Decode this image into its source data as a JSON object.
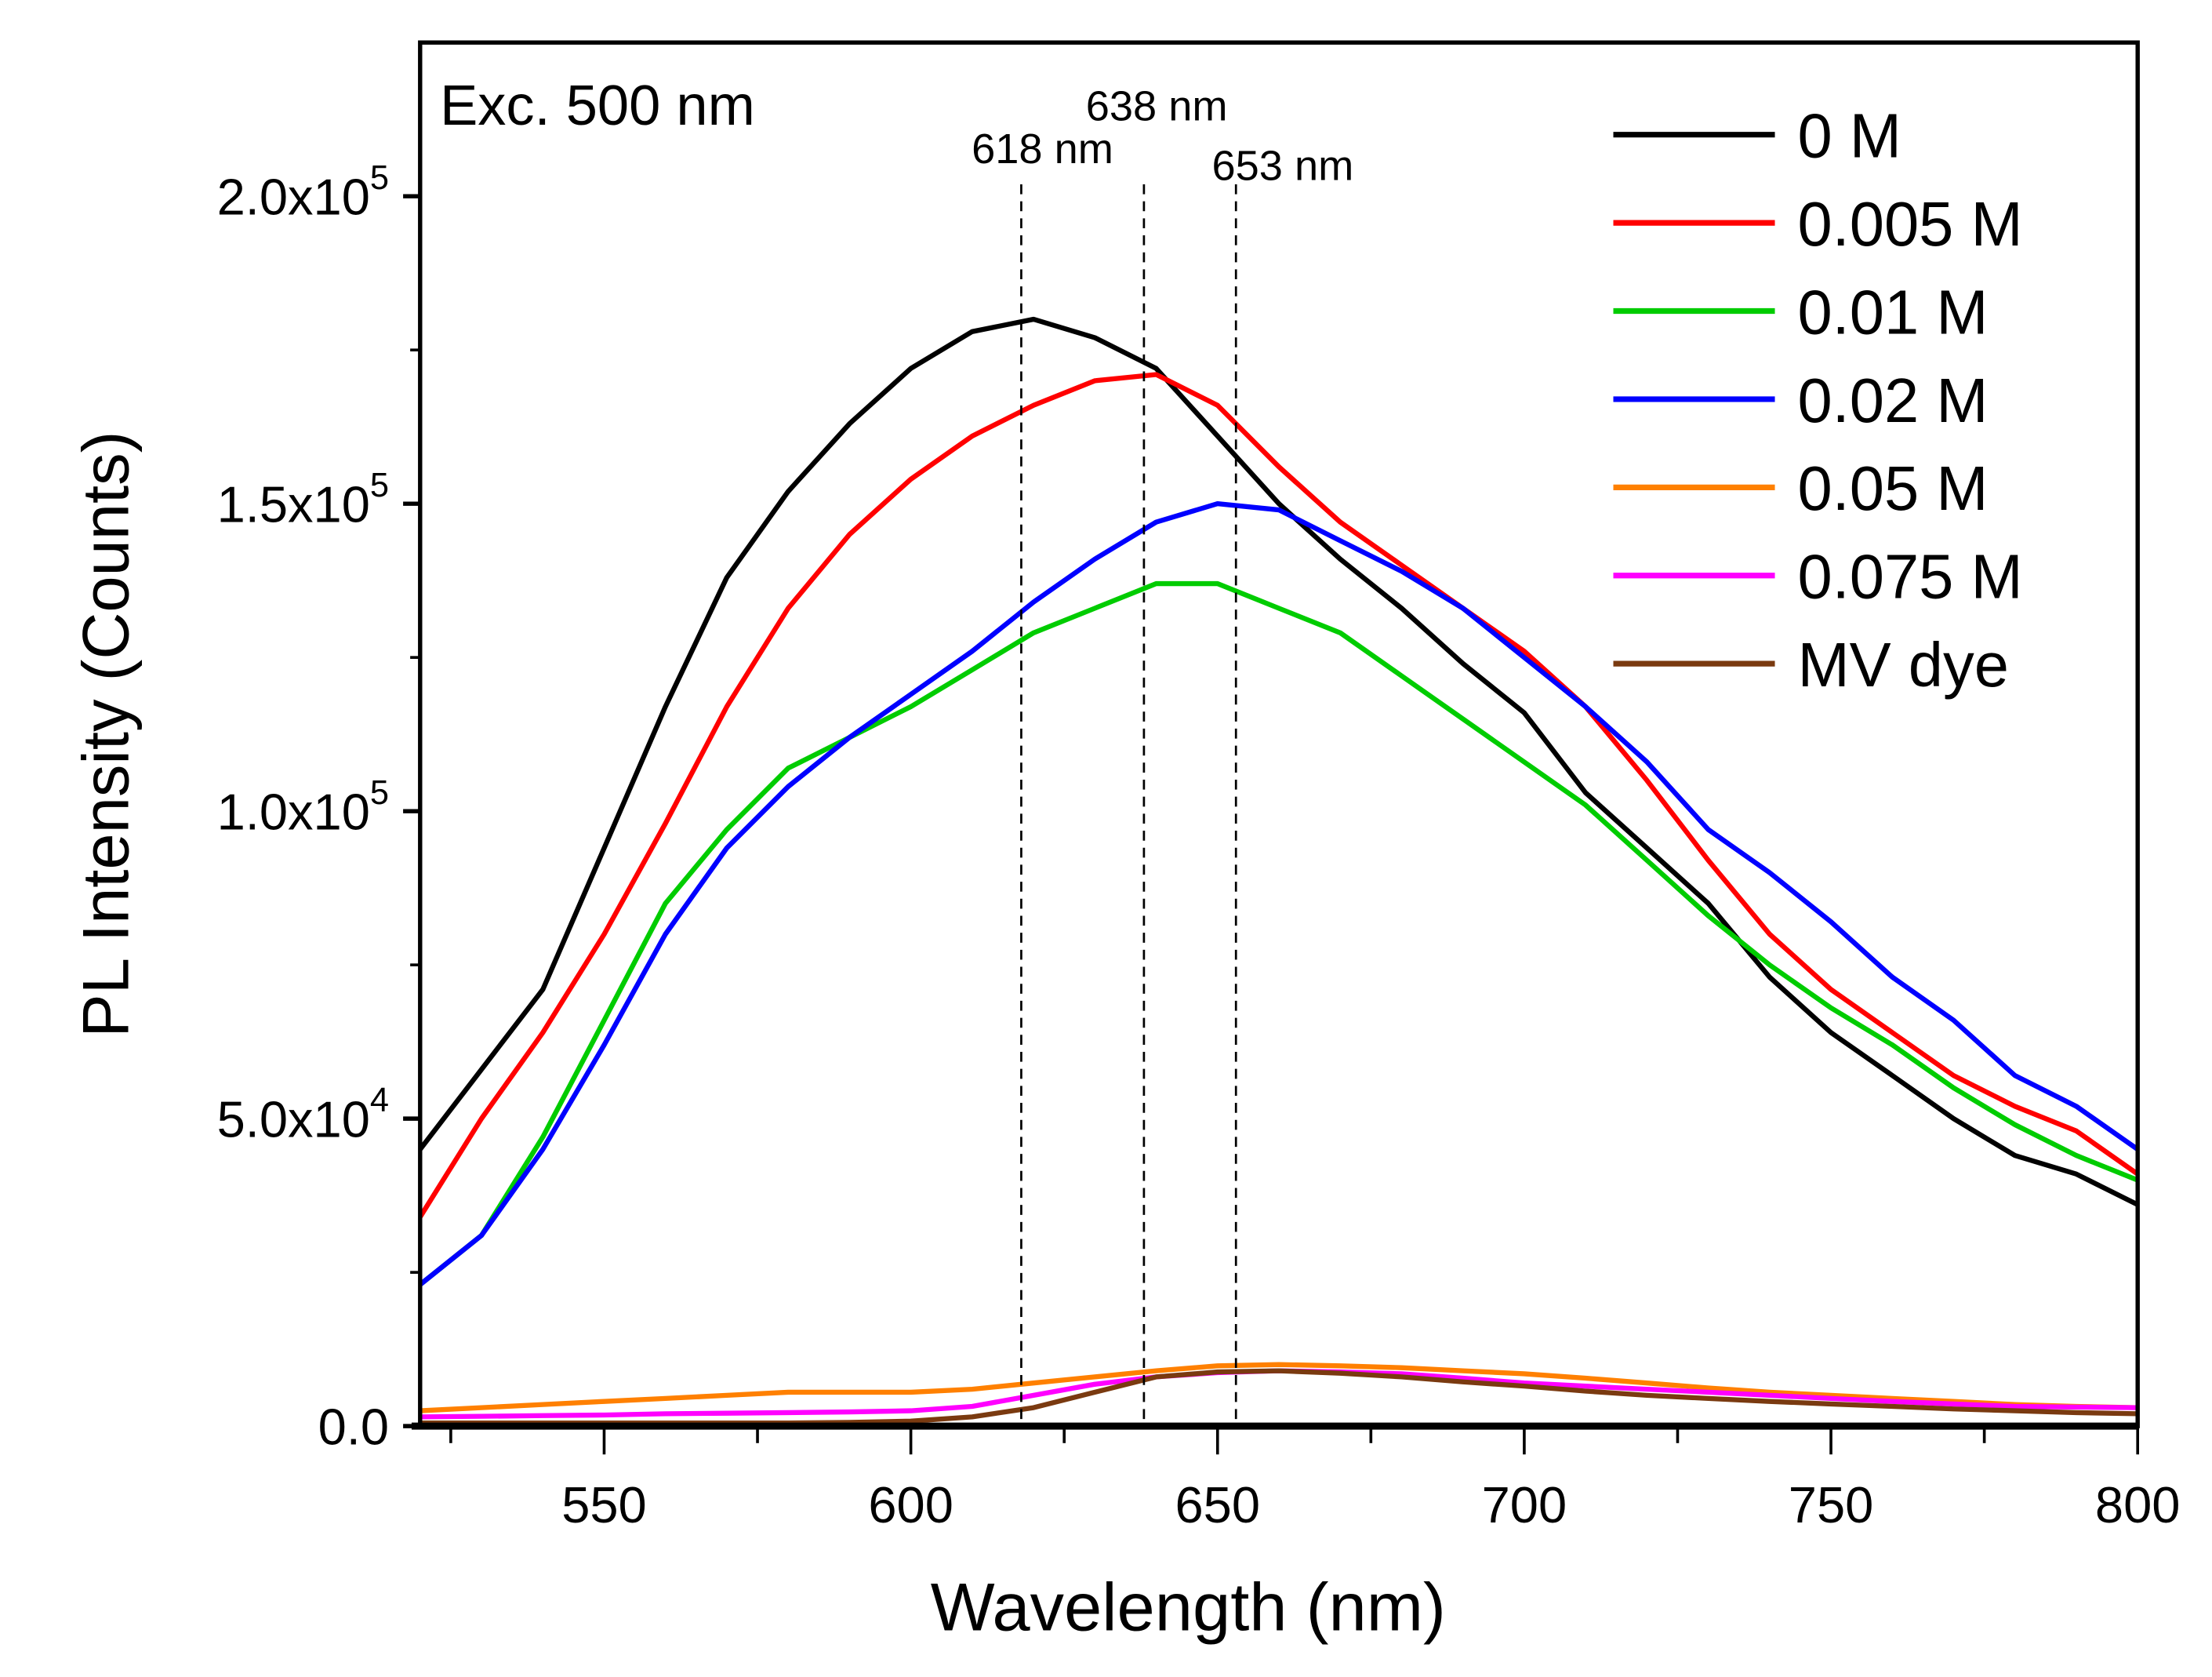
{
  "chart_data": {
    "type": "line",
    "xlabel": "Wavelength (nm)",
    "ylabel": "PL Intensity (Counts)",
    "xlim": [
      520,
      800
    ],
    "ylim": [
      0,
      225000
    ],
    "xticks": [
      550,
      600,
      650,
      700,
      750,
      800
    ],
    "xtick_labels": [
      "550",
      "600",
      "650",
      "700",
      "750",
      "800"
    ],
    "yticks": [
      0,
      50000,
      100000,
      150000,
      200000
    ],
    "ytick_labels": [
      {
        "base": "0.0",
        "exp": ""
      },
      {
        "base": "5.0x10",
        "exp": "4"
      },
      {
        "base": "1.0x10",
        "exp": "5"
      },
      {
        "base": "1.5x10",
        "exp": "5"
      },
      {
        "base": "2.0x10",
        "exp": "5"
      }
    ],
    "grid": false,
    "legend_position": "top-right",
    "annotation_text": "Exc. 500 nm",
    "reference_lines": [
      {
        "x": 618,
        "label": "618 nm"
      },
      {
        "x": 638,
        "label": "638 nm"
      },
      {
        "x": 653,
        "label": "653 nm"
      }
    ],
    "x": [
      520,
      530,
      540,
      550,
      560,
      570,
      580,
      590,
      600,
      610,
      620,
      630,
      640,
      650,
      660,
      670,
      680,
      690,
      700,
      710,
      720,
      730,
      740,
      750,
      760,
      770,
      780,
      790,
      800
    ],
    "series": [
      {
        "name": "0 M",
        "color": "#000000",
        "values": [
          45000,
          58000,
          71000,
          94000,
          117000,
          138000,
          152000,
          163000,
          172000,
          178000,
          180000,
          177000,
          172000,
          161000,
          150000,
          141000,
          133000,
          124000,
          116000,
          103000,
          94000,
          85000,
          73000,
          64000,
          57000,
          50000,
          44000,
          41000,
          36000
        ]
      },
      {
        "name": "0.005 M",
        "color": "#ff0000",
        "values": [
          34000,
          50000,
          64000,
          80000,
          98000,
          117000,
          133000,
          145000,
          154000,
          161000,
          166000,
          170000,
          171000,
          166000,
          156000,
          147000,
          140000,
          133000,
          126000,
          117000,
          105000,
          92000,
          80000,
          71000,
          64000,
          57000,
          52000,
          48000,
          41000
        ]
      },
      {
        "name": "0.01 M",
        "color": "#00cc00",
        "values": [
          23000,
          31000,
          47000,
          66000,
          85000,
          97000,
          107000,
          112000,
          117000,
          123000,
          129000,
          133000,
          137000,
          137000,
          133000,
          129000,
          122000,
          115000,
          108000,
          101000,
          92000,
          83000,
          75000,
          68000,
          62000,
          55000,
          49000,
          44000,
          40000
        ]
      },
      {
        "name": "0.02 M",
        "color": "#0000ff",
        "values": [
          23000,
          31000,
          45000,
          62000,
          80000,
          94000,
          104000,
          112000,
          119000,
          126000,
          134000,
          141000,
          147000,
          150000,
          149000,
          144000,
          139000,
          133000,
          125000,
          117000,
          108000,
          97000,
          90000,
          82000,
          73000,
          66000,
          57000,
          52000,
          45000
        ]
      },
      {
        "name": "0.05 M",
        "color": "#ff8000",
        "values": [
          2500,
          3000,
          3500,
          4000,
          4500,
          5000,
          5500,
          5500,
          5500,
          6000,
          7000,
          8000,
          9000,
          9800,
          10000,
          9800,
          9500,
          9000,
          8500,
          7800,
          7000,
          6200,
          5500,
          5000,
          4500,
          4000,
          3500,
          3200,
          3000
        ]
      },
      {
        "name": "0.075 M",
        "color": "#ff00ff",
        "values": [
          1500,
          1600,
          1700,
          1800,
          2000,
          2100,
          2200,
          2300,
          2500,
          3200,
          5000,
          6800,
          8000,
          8700,
          9000,
          8800,
          8500,
          7800,
          7000,
          6500,
          6000,
          5500,
          5000,
          4500,
          4000,
          3600,
          3200,
          3100,
          3000
        ]
      },
      {
        "name": "MV dye",
        "color": "#7a3a10",
        "values": [
          500,
          500,
          500,
          500,
          500,
          500,
          500,
          600,
          800,
          1500,
          3000,
          5500,
          8000,
          8800,
          9000,
          8600,
          8000,
          7200,
          6500,
          5700,
          5000,
          4500,
          4000,
          3600,
          3200,
          2800,
          2500,
          2200,
          2000
        ]
      }
    ]
  }
}
